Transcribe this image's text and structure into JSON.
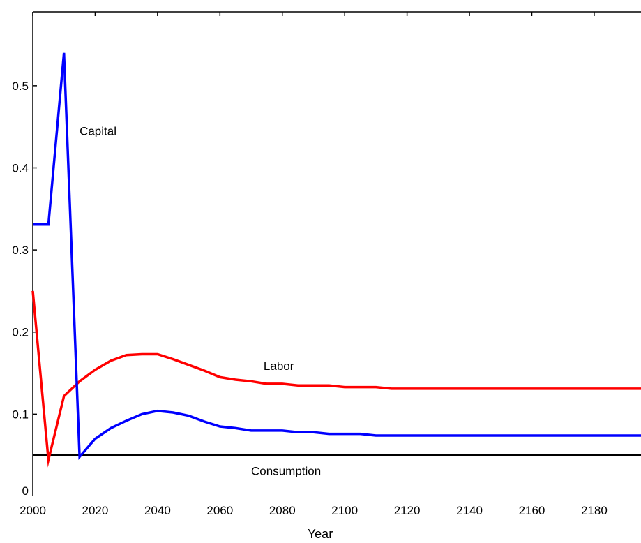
{
  "chart_data": {
    "type": "line",
    "title": "",
    "xlabel": "Year",
    "ylabel": "",
    "xlim": [
      2000,
      2195
    ],
    "ylim": [
      0,
      0.59
    ],
    "grid": false,
    "x_ticks": [
      2000,
      2020,
      2040,
      2060,
      2080,
      2100,
      2120,
      2140,
      2160,
      2180
    ],
    "y_ticks": [
      0,
      0.1,
      0.2,
      0.3,
      0.4,
      0.5
    ],
    "y_tick_labels": [
      "0",
      "0.1",
      "0.2",
      "0.3",
      "0.4",
      "0.5"
    ],
    "series": [
      {
        "name": "Capital",
        "color": "#0000ff",
        "label_at": [
          2015,
          0.44
        ],
        "x": [
          2000,
          2005,
          2010,
          2015,
          2020,
          2025,
          2030,
          2035,
          2040,
          2045,
          2050,
          2055,
          2060,
          2065,
          2070,
          2075,
          2080,
          2085,
          2090,
          2095,
          2100,
          2105,
          2110,
          2115,
          2120,
          2195
        ],
        "y": [
          0.331,
          0.331,
          0.54,
          0.048,
          0.07,
          0.083,
          0.092,
          0.1,
          0.104,
          0.102,
          0.098,
          0.091,
          0.085,
          0.083,
          0.08,
          0.08,
          0.08,
          0.078,
          0.078,
          0.076,
          0.076,
          0.076,
          0.074,
          0.074,
          0.074,
          0.074
        ]
      },
      {
        "name": "Labor",
        "color": "#ff0000",
        "label_at": [
          2074,
          0.154
        ],
        "x": [
          2000,
          2005,
          2010,
          2015,
          2020,
          2025,
          2030,
          2035,
          2040,
          2045,
          2050,
          2055,
          2060,
          2065,
          2070,
          2075,
          2080,
          2085,
          2090,
          2095,
          2100,
          2105,
          2110,
          2115,
          2120,
          2195
        ],
        "y": [
          0.25,
          0.044,
          0.122,
          0.14,
          0.154,
          0.165,
          0.172,
          0.173,
          0.173,
          0.167,
          0.16,
          0.153,
          0.145,
          0.142,
          0.14,
          0.137,
          0.137,
          0.135,
          0.135,
          0.135,
          0.133,
          0.133,
          0.133,
          0.131,
          0.131,
          0.131
        ]
      },
      {
        "name": "Consumption",
        "color": "#000000",
        "label_at": [
          2070,
          0.026
        ],
        "x": [
          2000,
          2195
        ],
        "y": [
          0.05,
          0.05
        ]
      }
    ]
  }
}
